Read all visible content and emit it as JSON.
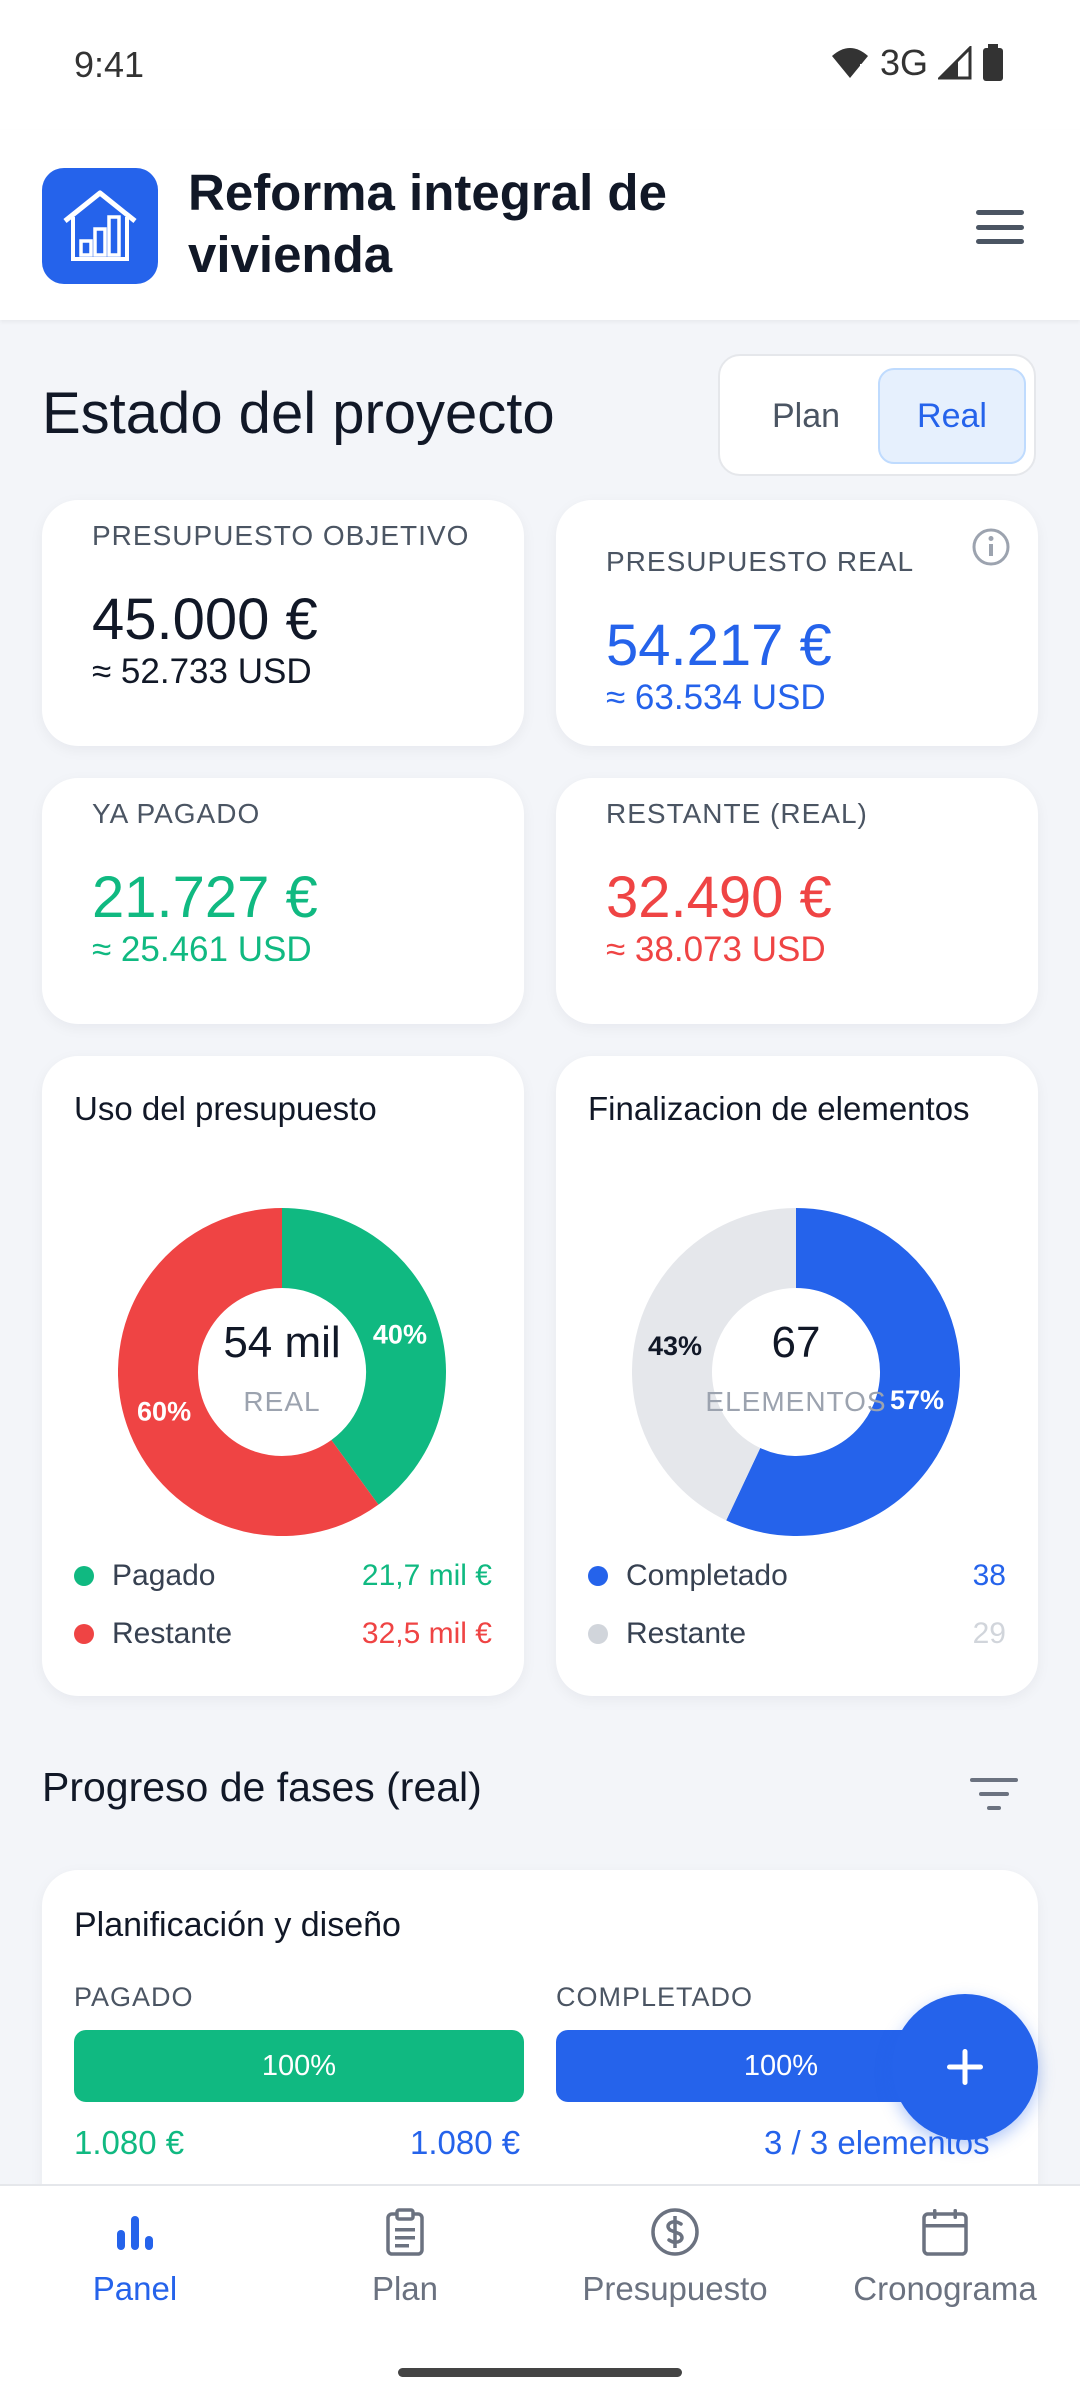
{
  "status_bar": {
    "time": "9:41",
    "network": "3G"
  },
  "header": {
    "title": "Reforma integral de vivienda",
    "logo_icon": "house-chart-icon",
    "menu_icon": "hamburger-menu-icon"
  },
  "overview": {
    "title": "Estado del proyecto",
    "toggle": {
      "plan": "Plan",
      "real": "Real",
      "selected": "Real"
    }
  },
  "stats": {
    "objective": {
      "label": "PRESUPUESTO OBJETIVO",
      "value": "45.000 €",
      "usd": "≈ 52.733 USD"
    },
    "real": {
      "label": "PRESUPUESTO REAL",
      "value": "54.217 €",
      "usd": "≈ 63.534 USD"
    },
    "paid": {
      "label": "YA PAGADO",
      "value": "21.727 €",
      "usd": "≈ 25.461 USD"
    },
    "remaining": {
      "label": "RESTANTE (REAL)",
      "value": "32.490 €",
      "usd": "≈ 38.073 USD"
    }
  },
  "budget_chart": {
    "title": "Uso del presupuesto",
    "center_value": "54 mil",
    "center_label": "REAL",
    "legend": [
      {
        "label": "Pagado",
        "value": "21,7 mil €",
        "color": "#10b981"
      },
      {
        "label": "Restante",
        "value": "32,5 mil €",
        "color": "#ef4444"
      }
    ]
  },
  "elements_chart": {
    "title": "Finalizacion de elementos",
    "center_value": "67",
    "center_label": "ELEMENTOS",
    "legend": [
      {
        "label": "Completado",
        "value": "38",
        "color": "#2563eb"
      },
      {
        "label": "Restante",
        "value": "29",
        "color": "#d1d5db"
      }
    ]
  },
  "chart_data": [
    {
      "type": "pie",
      "title": "Uso del presupuesto",
      "categories": [
        "Pagado",
        "Restante"
      ],
      "values": [
        40,
        60
      ],
      "value_labels": [
        "40%",
        "60%"
      ],
      "colors": [
        "#10b981",
        "#ef4444"
      ]
    },
    {
      "type": "pie",
      "title": "Finalizacion de elementos",
      "categories": [
        "Completado",
        "Restante"
      ],
      "values": [
        57,
        43
      ],
      "value_labels": [
        "57%",
        "43%"
      ],
      "colors": [
        "#2563eb",
        "#e5e7eb"
      ]
    }
  ],
  "phases": {
    "title": "Progreso de fases (real)",
    "filter_icon": "filter-icon",
    "items": [
      {
        "name": "Planificación y diseño",
        "paid_label": "PAGADO",
        "paid_percent": "100%",
        "paid_fraction": 1.0,
        "paid_amount": "1.080 €",
        "paid_total": "1.080 €",
        "completed_label": "COMPLETADO",
        "completed_percent": "100%",
        "completed_fraction": 1.0,
        "completed_text": "3 / 3 elementos"
      }
    ]
  },
  "fab": {
    "icon": "plus-icon"
  },
  "nav": {
    "items": [
      {
        "label": "Panel",
        "icon": "bar-chart-icon",
        "active": true
      },
      {
        "label": "Plan",
        "icon": "clipboard-icon",
        "active": false
      },
      {
        "label": "Presupuesto",
        "icon": "dollar-circle-icon",
        "active": false
      },
      {
        "label": "Cronograma",
        "icon": "calendar-icon",
        "active": false
      }
    ]
  }
}
